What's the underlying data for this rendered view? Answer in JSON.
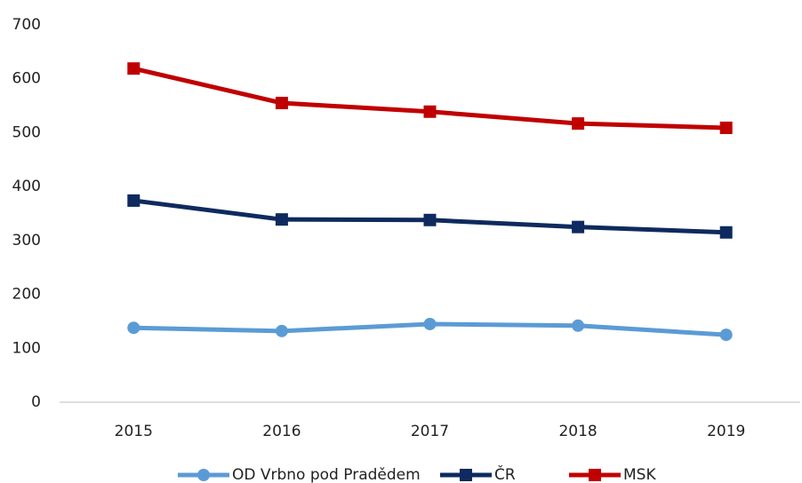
{
  "chart_data": {
    "type": "line",
    "categories": [
      "2015",
      "2016",
      "2017",
      "2018",
      "2019"
    ],
    "series": [
      {
        "name": "OD Vrbno pod Pradědem",
        "color": "#5b9bd5",
        "marker": "circle",
        "values": [
          138,
          132,
          145,
          142,
          125
        ]
      },
      {
        "name": "ČR",
        "color": "#0e2a5e",
        "marker": "square",
        "values": [
          374,
          339,
          338,
          325,
          315
        ]
      },
      {
        "name": "MSK",
        "color": "#c00000",
        "marker": "square",
        "values": [
          619,
          555,
          539,
          517,
          509
        ]
      }
    ],
    "ylim": [
      0,
      700
    ],
    "yticks": [
      0,
      100,
      200,
      300,
      400,
      500,
      600,
      700
    ],
    "grid": false,
    "legend": "bottom"
  }
}
